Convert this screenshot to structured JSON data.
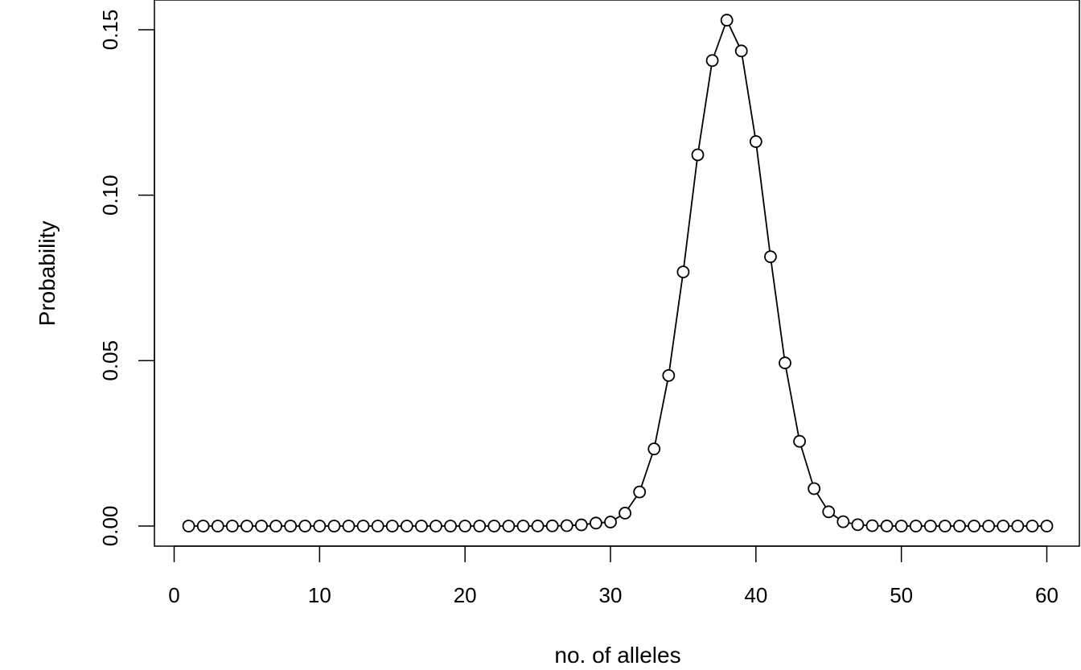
{
  "chart_data": {
    "type": "line",
    "markers": "open-circle",
    "xlabel": "no. of alleles",
    "ylabel": "Probability",
    "xlim": [
      0,
      60
    ],
    "ylim": [
      0,
      0.15
    ],
    "x_ticks": [
      0,
      10,
      20,
      30,
      40,
      50,
      60
    ],
    "x_tick_labels": [
      "0",
      "10",
      "20",
      "30",
      "40",
      "50",
      "60"
    ],
    "y_ticks": [
      0,
      0.05,
      0.1,
      0.15
    ],
    "y_tick_labels": [
      "0.00",
      "0.05",
      "0.10",
      "0.15"
    ],
    "grid": false,
    "legend": "none",
    "colors": {
      "line": "#000000",
      "marker": "#000000",
      "background": "#ffffff"
    },
    "series": [
      {
        "x": [
          1,
          2,
          3,
          4,
          5,
          6,
          7,
          8,
          9,
          10,
          11,
          12,
          13,
          14,
          15,
          16,
          17,
          18,
          19,
          20,
          21,
          22,
          23,
          24,
          25,
          26,
          27,
          28,
          29,
          30,
          31,
          32,
          33,
          34,
          35,
          36,
          37,
          38,
          39,
          40,
          41,
          42,
          43,
          44,
          45,
          46,
          47,
          48,
          49,
          50,
          51,
          52,
          53,
          54,
          55,
          56,
          57,
          58,
          59,
          60
        ],
        "values": [
          0,
          0,
          0,
          0,
          0,
          0,
          0,
          0,
          0,
          0,
          0,
          0,
          0,
          0,
          0,
          0,
          0,
          0,
          0,
          0,
          0,
          0,
          0,
          0,
          2e-05,
          5e-05,
          0.00012,
          0.00035,
          0.0009,
          0.0012,
          0.0039,
          0.0103,
          0.0233,
          0.0455,
          0.0768,
          0.1122,
          0.1407,
          0.1529,
          0.1436,
          0.1162,
          0.0814,
          0.0493,
          0.0256,
          0.0113,
          0.0043,
          0.0013,
          0.0004,
          0.0001,
          2e-05,
          0,
          0,
          0,
          0,
          0,
          0,
          0,
          0,
          0,
          0,
          0
        ]
      }
    ]
  }
}
